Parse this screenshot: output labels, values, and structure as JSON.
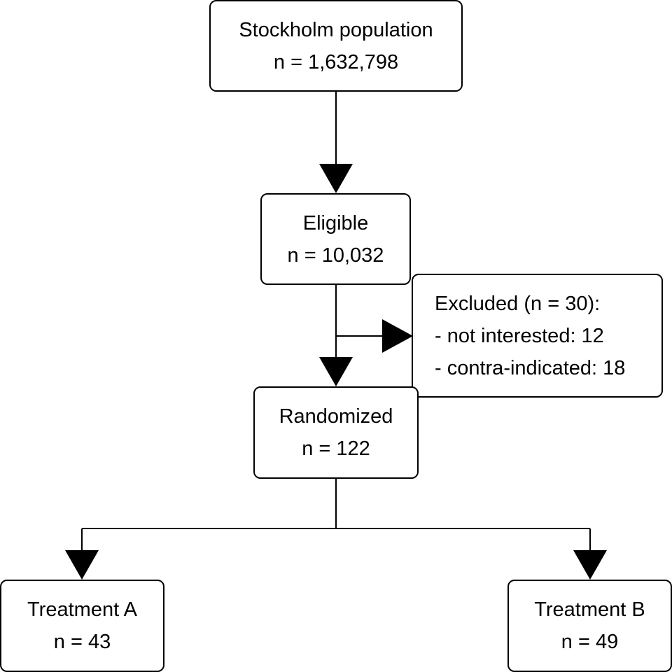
{
  "nodes": {
    "population": {
      "title": "Stockholm population",
      "count": "n = 1,632,798"
    },
    "eligible": {
      "title": "Eligible",
      "count": "n = 10,032"
    },
    "excluded": {
      "title": "Excluded (n = 30):",
      "reasons": [
        "- not interested: 12",
        "- contra-indicated: 18"
      ]
    },
    "randomized": {
      "title": "Randomized",
      "count": "n = 122"
    },
    "treatment_a": {
      "title": "Treatment A",
      "count": "n = 43"
    },
    "treatment_b": {
      "title": "Treatment B",
      "count": "n = 49"
    }
  }
}
